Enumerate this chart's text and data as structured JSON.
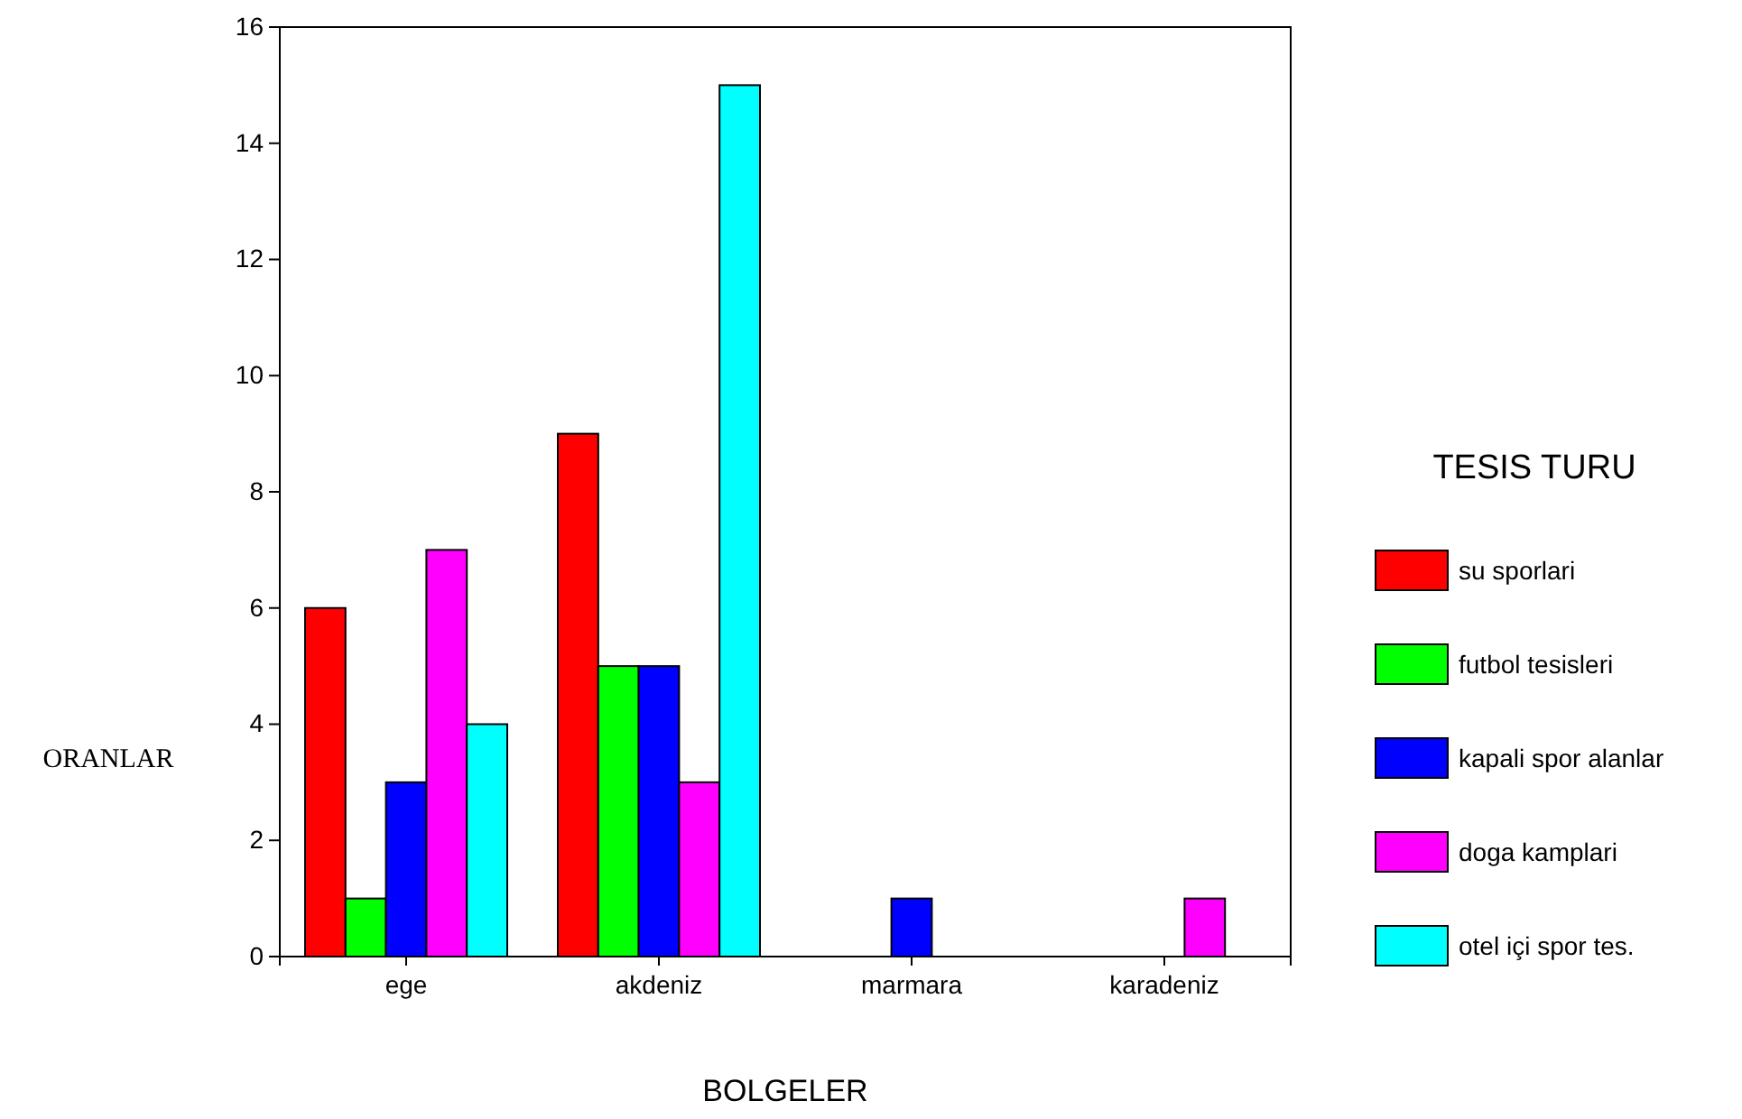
{
  "chart_data": {
    "type": "bar",
    "xlabel": "BOLGELER",
    "ylabel": "ORANLAR",
    "legend_title": "TESIS TURU",
    "categories": [
      "ege",
      "akdeniz",
      "marmara",
      "karadeniz"
    ],
    "series": [
      {
        "name": "su sporlari",
        "color": "#ff0000",
        "values": [
          6,
          9,
          0,
          0
        ]
      },
      {
        "name": "futbol tesisleri",
        "color": "#00ff00",
        "values": [
          1,
          5,
          0,
          0
        ]
      },
      {
        "name": "kapali spor alanlar",
        "color": "#0000ff",
        "values": [
          3,
          5,
          1,
          0
        ]
      },
      {
        "name": "doga kamplari",
        "color": "#ff00ff",
        "values": [
          7,
          3,
          0,
          1
        ]
      },
      {
        "name": "otel içi spor tes.",
        "color": "#00ffff",
        "values": [
          4,
          15,
          0,
          0
        ]
      }
    ],
    "ylim": [
      0,
      16
    ],
    "yticks": [
      0,
      2,
      4,
      6,
      8,
      10,
      12,
      14,
      16
    ],
    "grid": false,
    "legend": "right"
  }
}
